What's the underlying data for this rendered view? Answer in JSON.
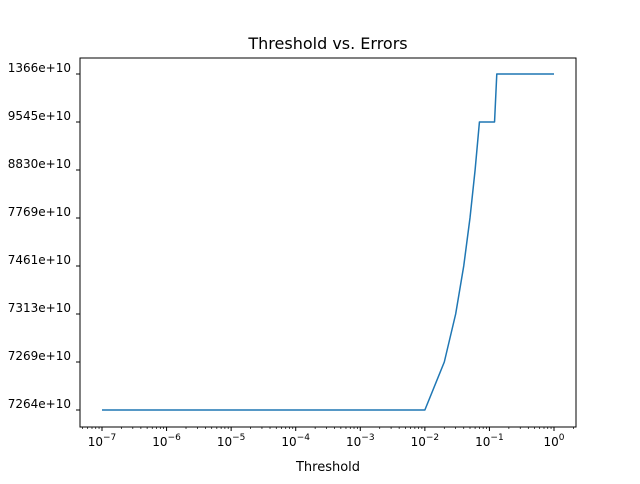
{
  "chart_data": {
    "type": "line",
    "title": "Threshold vs. Errors",
    "xlabel": "Threshold",
    "ylabel": "",
    "x_scale": "log",
    "x_ticks": [
      {
        "value": 1e-07,
        "base": "10",
        "exp": "−7"
      },
      {
        "value": 1e-06,
        "base": "10",
        "exp": "−6"
      },
      {
        "value": 1e-05,
        "base": "10",
        "exp": "−5"
      },
      {
        "value": 0.0001,
        "base": "10",
        "exp": "−4"
      },
      {
        "value": 0.001,
        "base": "10",
        "exp": "−3"
      },
      {
        "value": 0.01,
        "base": "10",
        "exp": "−2"
      },
      {
        "value": 0.1,
        "base": "10",
        "exp": "−1"
      },
      {
        "value": 1,
        "base": "10",
        "exp": "0"
      }
    ],
    "y_scale": "categorical",
    "y_ticks": [
      "7264e+10",
      "7269e+10",
      "7313e+10",
      "7461e+10",
      "7769e+10",
      "8830e+10",
      "9545e+10",
      "1366e+10"
    ],
    "series": [
      {
        "color": "#1f77b4",
        "points": [
          {
            "x": 1e-07,
            "level": 0
          },
          {
            "x": 0.01,
            "level": 0
          },
          {
            "x": 0.02,
            "level": 1
          },
          {
            "x": 0.03,
            "level": 2
          },
          {
            "x": 0.04,
            "level": 3
          },
          {
            "x": 0.05,
            "level": 4
          },
          {
            "x": 0.06,
            "level": 5
          },
          {
            "x": 0.07,
            "level": 6
          },
          {
            "x": 0.12,
            "level": 6
          },
          {
            "x": 0.13,
            "level": 7
          },
          {
            "x": 1,
            "level": 7
          }
        ]
      }
    ],
    "grid": false,
    "legend": "none"
  }
}
